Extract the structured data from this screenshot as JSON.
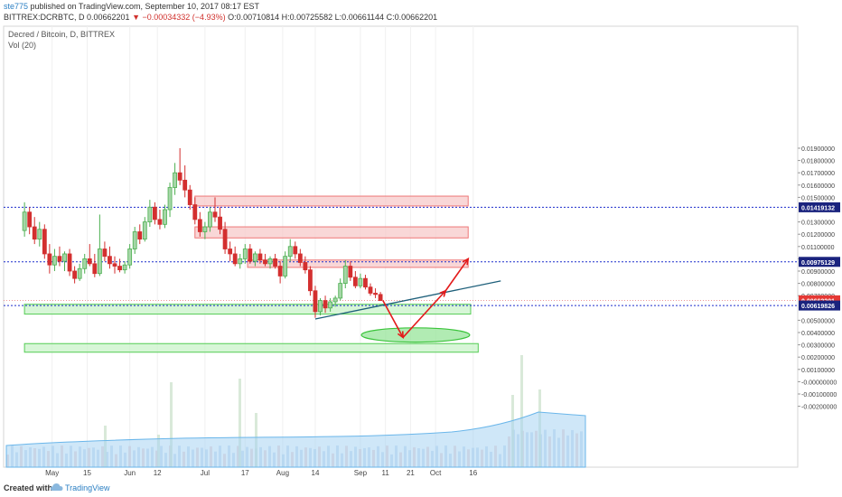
{
  "header": {
    "author": "ste775",
    "published": " published on TradingView.com, September 10, 2017 08:17 EST",
    "symbol": "BITTREX:DCRBTC, D ",
    "last": "0.00662201",
    "change": "▼ −0.00034332 (−4.93%)",
    "ohlc": " O:0.00710814 H:0.00725582 L:0.00661144 C:0.00662201"
  },
  "legend": {
    "title": "Decred / Bitcoin, D, BITTREX",
    "volume": "Vol (20)"
  },
  "footer": {
    "created": "Created with",
    "brand": "TradingView"
  },
  "chart_data": {
    "type": "candlestick",
    "price_axis_ticks": [
      "0.01900000",
      "0.01800000",
      "0.01700000",
      "0.01600000",
      "0.01500000",
      "0.01300000",
      "0.01200000",
      "0.01100000",
      "0.01000000",
      "0.00900000",
      "0.00800000",
      "0.00700000",
      "0.00500000",
      "0.00400000",
      "0.00300000",
      "0.00200000",
      "0.00100000",
      "-0.00000000",
      "-0.00100000",
      "-0.00200000"
    ],
    "x_ticks": [
      "May",
      "15",
      "Jun",
      "12",
      "Jul",
      "17",
      "Aug",
      "14",
      "Sep",
      "11",
      "21",
      "Oct",
      "16"
    ],
    "price_labels": [
      {
        "label": "0.01419132",
        "value": 0.01419132,
        "color": "#1a237e"
      },
      {
        "label": "0.00975129",
        "value": 0.00975129,
        "color": "#1a237e"
      },
      {
        "label": "0.00662201",
        "value": 0.00662201,
        "color": "#e53935"
      },
      {
        "label": "0.00619826",
        "value": 0.00619826,
        "color": "#1a237e"
      }
    ],
    "resistance_zones": [
      {
        "start_date": "2017-06-27",
        "end_date": "2017-10-14",
        "low": 0.0143,
        "high": 0.0151
      },
      {
        "start_date": "2017-06-27",
        "end_date": "2017-10-14",
        "low": 0.0117,
        "high": 0.0126
      },
      {
        "start_date": "2017-07-18",
        "end_date": "2017-10-14",
        "low": 0.0093,
        "high": 0.0099
      }
    ],
    "support_zones": [
      {
        "start_date": "2017-04-20",
        "end_date": "2017-10-15",
        "low": 0.0055,
        "high": 0.0063
      },
      {
        "start_date": "2017-04-20",
        "end_date": "2017-10-18",
        "low": 0.0024,
        "high": 0.0031
      }
    ],
    "horizontal_lines": [
      0.01419132,
      0.00975129,
      0.00619826
    ],
    "trendline": {
      "start_date": "2017-08-14",
      "start_price": 0.0051,
      "end_date": "2017-10-27",
      "end_price": 0.0082
    },
    "target_ellipse": {
      "center_date": "2017-09-23",
      "center_price": 0.0038,
      "date_halfwidth_days": 9,
      "price_halfwidth": 0.00058
    },
    "projection_path": [
      {
        "date": "2017-09-10",
        "price": 0.0066
      },
      {
        "date": "2017-09-18",
        "price": 0.0036
      },
      {
        "date": "2017-10-05",
        "price": 0.0074
      },
      {
        "date": "2017-10-14",
        "price": 0.01
      }
    ],
    "candles": [
      {
        "date": "2017-04-20",
        "open": 0.0123,
        "high": 0.0146,
        "low": 0.0118,
        "close": 0.0138
      },
      {
        "date": "2017-04-22",
        "open": 0.0138,
        "high": 0.0142,
        "low": 0.012,
        "close": 0.0126
      },
      {
        "date": "2017-04-24",
        "open": 0.0126,
        "high": 0.0134,
        "low": 0.0112,
        "close": 0.0116
      },
      {
        "date": "2017-04-26",
        "open": 0.0116,
        "high": 0.013,
        "low": 0.011,
        "close": 0.0124
      },
      {
        "date": "2017-04-28",
        "open": 0.0124,
        "high": 0.0128,
        "low": 0.01,
        "close": 0.0104
      },
      {
        "date": "2017-04-30",
        "open": 0.0104,
        "high": 0.0112,
        "low": 0.0088,
        "close": 0.0095
      },
      {
        "date": "2017-05-02",
        "open": 0.0095,
        "high": 0.0108,
        "low": 0.009,
        "close": 0.0102
      },
      {
        "date": "2017-05-04",
        "open": 0.0102,
        "high": 0.011,
        "low": 0.0094,
        "close": 0.0098
      },
      {
        "date": "2017-05-06",
        "open": 0.0098,
        "high": 0.0106,
        "low": 0.009,
        "close": 0.0104
      },
      {
        "date": "2017-05-08",
        "open": 0.0104,
        "high": 0.0108,
        "low": 0.0086,
        "close": 0.009
      },
      {
        "date": "2017-05-10",
        "open": 0.009,
        "high": 0.0094,
        "low": 0.008,
        "close": 0.0084
      },
      {
        "date": "2017-05-12",
        "open": 0.0084,
        "high": 0.0096,
        "low": 0.0082,
        "close": 0.0092
      },
      {
        "date": "2017-05-14",
        "open": 0.0092,
        "high": 0.0104,
        "low": 0.0088,
        "close": 0.01
      },
      {
        "date": "2017-05-16",
        "open": 0.01,
        "high": 0.0112,
        "low": 0.0094,
        "close": 0.0096
      },
      {
        "date": "2017-05-18",
        "open": 0.0096,
        "high": 0.0104,
        "low": 0.0085,
        "close": 0.0088
      },
      {
        "date": "2017-05-20",
        "open": 0.0088,
        "high": 0.0136,
        "low": 0.0086,
        "close": 0.0108
      },
      {
        "date": "2017-05-22",
        "open": 0.0108,
        "high": 0.0114,
        "low": 0.0098,
        "close": 0.0102
      },
      {
        "date": "2017-05-24",
        "open": 0.0102,
        "high": 0.011,
        "low": 0.0092,
        "close": 0.0096
      },
      {
        "date": "2017-05-26",
        "open": 0.0096,
        "high": 0.0102,
        "low": 0.0088,
        "close": 0.0094
      },
      {
        "date": "2017-05-28",
        "open": 0.0094,
        "high": 0.01,
        "low": 0.0089,
        "close": 0.0091
      },
      {
        "date": "2017-05-30",
        "open": 0.0091,
        "high": 0.0098,
        "low": 0.0088,
        "close": 0.0095
      },
      {
        "date": "2017-06-01",
        "open": 0.0095,
        "high": 0.0112,
        "low": 0.0092,
        "close": 0.0108
      },
      {
        "date": "2017-06-03",
        "open": 0.0108,
        "high": 0.0126,
        "low": 0.0104,
        "close": 0.0122
      },
      {
        "date": "2017-06-05",
        "open": 0.0122,
        "high": 0.0128,
        "low": 0.0112,
        "close": 0.0116
      },
      {
        "date": "2017-06-07",
        "open": 0.0116,
        "high": 0.0134,
        "low": 0.0114,
        "close": 0.013
      },
      {
        "date": "2017-06-09",
        "open": 0.013,
        "high": 0.0148,
        "low": 0.0126,
        "close": 0.0142
      },
      {
        "date": "2017-06-11",
        "open": 0.0142,
        "high": 0.0146,
        "low": 0.0128,
        "close": 0.0132
      },
      {
        "date": "2017-06-13",
        "open": 0.0132,
        "high": 0.014,
        "low": 0.0124,
        "close": 0.0128
      },
      {
        "date": "2017-06-15",
        "open": 0.0128,
        "high": 0.0144,
        "low": 0.0125,
        "close": 0.014
      },
      {
        "date": "2017-06-17",
        "open": 0.014,
        "high": 0.0162,
        "low": 0.0134,
        "close": 0.0158
      },
      {
        "date": "2017-06-19",
        "open": 0.0158,
        "high": 0.0178,
        "low": 0.0152,
        "close": 0.017
      },
      {
        "date": "2017-06-21",
        "open": 0.017,
        "high": 0.019,
        "low": 0.016,
        "close": 0.0164
      },
      {
        "date": "2017-06-23",
        "open": 0.0164,
        "high": 0.0176,
        "low": 0.015,
        "close": 0.0156
      },
      {
        "date": "2017-06-25",
        "open": 0.0156,
        "high": 0.016,
        "low": 0.014,
        "close": 0.0144
      },
      {
        "date": "2017-06-27",
        "open": 0.0144,
        "high": 0.015,
        "low": 0.0128,
        "close": 0.0132
      },
      {
        "date": "2017-06-29",
        "open": 0.0132,
        "high": 0.0138,
        "low": 0.0118,
        "close": 0.0122
      },
      {
        "date": "2017-07-01",
        "open": 0.0122,
        "high": 0.013,
        "low": 0.0116,
        "close": 0.0126
      },
      {
        "date": "2017-07-03",
        "open": 0.0126,
        "high": 0.0142,
        "low": 0.0122,
        "close": 0.0138
      },
      {
        "date": "2017-07-05",
        "open": 0.0138,
        "high": 0.015,
        "low": 0.013,
        "close": 0.0134
      },
      {
        "date": "2017-07-07",
        "open": 0.0134,
        "high": 0.0142,
        "low": 0.012,
        "close": 0.0124
      },
      {
        "date": "2017-07-09",
        "open": 0.0124,
        "high": 0.013,
        "low": 0.0104,
        "close": 0.0108
      },
      {
        "date": "2017-07-11",
        "open": 0.0108,
        "high": 0.0114,
        "low": 0.0098,
        "close": 0.0104
      },
      {
        "date": "2017-07-13",
        "open": 0.0104,
        "high": 0.011,
        "low": 0.0094,
        "close": 0.0096
      },
      {
        "date": "2017-07-15",
        "open": 0.0096,
        "high": 0.0104,
        "low": 0.0092,
        "close": 0.01
      },
      {
        "date": "2017-07-17",
        "open": 0.01,
        "high": 0.0112,
        "low": 0.0096,
        "close": 0.0108
      },
      {
        "date": "2017-07-19",
        "open": 0.0108,
        "high": 0.0112,
        "low": 0.0096,
        "close": 0.0098
      },
      {
        "date": "2017-07-21",
        "open": 0.0098,
        "high": 0.0106,
        "low": 0.0094,
        "close": 0.0104
      },
      {
        "date": "2017-07-23",
        "open": 0.0104,
        "high": 0.0108,
        "low": 0.0096,
        "close": 0.0099
      },
      {
        "date": "2017-07-25",
        "open": 0.0099,
        "high": 0.0104,
        "low": 0.0094,
        "close": 0.0096
      },
      {
        "date": "2017-07-27",
        "open": 0.0096,
        "high": 0.0102,
        "low": 0.0092,
        "close": 0.01
      },
      {
        "date": "2017-07-29",
        "open": 0.01,
        "high": 0.0104,
        "low": 0.0092,
        "close": 0.0094
      },
      {
        "date": "2017-07-31",
        "open": 0.0094,
        "high": 0.0098,
        "low": 0.008,
        "close": 0.0086
      },
      {
        "date": "2017-08-02",
        "open": 0.0086,
        "high": 0.0106,
        "low": 0.0084,
        "close": 0.0102
      },
      {
        "date": "2017-08-04",
        "open": 0.0102,
        "high": 0.0116,
        "low": 0.0098,
        "close": 0.011
      },
      {
        "date": "2017-08-06",
        "open": 0.011,
        "high": 0.0114,
        "low": 0.01,
        "close": 0.0104
      },
      {
        "date": "2017-08-08",
        "open": 0.0104,
        "high": 0.0108,
        "low": 0.0094,
        "close": 0.0097
      },
      {
        "date": "2017-08-10",
        "open": 0.0097,
        "high": 0.0102,
        "low": 0.0088,
        "close": 0.0091
      },
      {
        "date": "2017-08-12",
        "open": 0.0091,
        "high": 0.0094,
        "low": 0.007,
        "close": 0.0074
      },
      {
        "date": "2017-08-14",
        "open": 0.0074,
        "high": 0.0078,
        "low": 0.0052,
        "close": 0.0057
      },
      {
        "date": "2017-08-16",
        "open": 0.0057,
        "high": 0.0068,
        "low": 0.0054,
        "close": 0.0066
      },
      {
        "date": "2017-08-18",
        "open": 0.0066,
        "high": 0.007,
        "low": 0.0056,
        "close": 0.006
      },
      {
        "date": "2017-08-20",
        "open": 0.006,
        "high": 0.0068,
        "low": 0.0057,
        "close": 0.0065
      },
      {
        "date": "2017-08-22",
        "open": 0.0065,
        "high": 0.007,
        "low": 0.0061,
        "close": 0.0068
      },
      {
        "date": "2017-08-24",
        "open": 0.0068,
        "high": 0.0084,
        "low": 0.0066,
        "close": 0.008
      },
      {
        "date": "2017-08-26",
        "open": 0.008,
        "high": 0.0099,
        "low": 0.0076,
        "close": 0.0094
      },
      {
        "date": "2017-08-28",
        "open": 0.0094,
        "high": 0.0098,
        "low": 0.0082,
        "close": 0.0085
      },
      {
        "date": "2017-08-30",
        "open": 0.0085,
        "high": 0.009,
        "low": 0.0076,
        "close": 0.0078
      },
      {
        "date": "2017-09-01",
        "open": 0.0078,
        "high": 0.0088,
        "low": 0.0076,
        "close": 0.0084
      },
      {
        "date": "2017-09-03",
        "open": 0.0084,
        "high": 0.0087,
        "low": 0.0075,
        "close": 0.0077
      },
      {
        "date": "2017-09-05",
        "open": 0.0077,
        "high": 0.008,
        "low": 0.007,
        "close": 0.0072
      },
      {
        "date": "2017-09-07",
        "open": 0.0072,
        "high": 0.0076,
        "low": 0.0068,
        "close": 0.0071
      },
      {
        "date": "2017-09-09",
        "open": 0.0071,
        "high": 0.0073,
        "low": 0.0066,
        "close": 0.0066
      }
    ]
  }
}
